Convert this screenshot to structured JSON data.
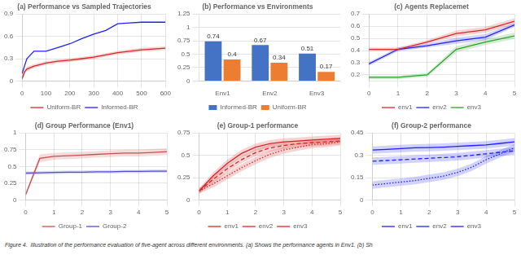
{
  "caption": "Figure 4.  Illustration of the performance evaluation of five-agent across different environments. (a) Shows the performance agents in Env1. (b) Sh",
  "chart_data": [
    {
      "type": "line",
      "title": "(a) Performance vs Sampled Trajectories",
      "x": [
        0,
        10,
        20,
        50,
        75,
        100,
        150,
        200,
        250,
        300,
        350,
        400,
        450,
        500,
        550,
        600
      ],
      "series": [
        {
          "name": "Uniform-BR",
          "color": "#d62728",
          "values": [
            0.03,
            0.12,
            0.16,
            0.2,
            0.22,
            0.24,
            0.265,
            0.28,
            0.3,
            0.32,
            0.35,
            0.38,
            0.4,
            0.42,
            0.43,
            0.44
          ],
          "lower": [
            0.02,
            0.09,
            0.13,
            0.175,
            0.195,
            0.215,
            0.24,
            0.255,
            0.275,
            0.295,
            0.325,
            0.355,
            0.375,
            0.395,
            0.405,
            0.415
          ],
          "upper": [
            0.04,
            0.15,
            0.19,
            0.225,
            0.245,
            0.265,
            0.29,
            0.305,
            0.325,
            0.345,
            0.375,
            0.405,
            0.425,
            0.445,
            0.455,
            0.465
          ]
        },
        {
          "name": "Informed-BR",
          "color": "#1f1fff",
          "values": [
            0.1,
            0.2,
            0.3,
            0.4,
            0.4,
            0.4,
            0.45,
            0.5,
            0.57,
            0.63,
            0.68,
            0.77,
            0.78,
            0.79,
            0.79,
            0.79
          ]
        }
      ],
      "xlim": [
        0,
        600
      ],
      "xticks": [
        0,
        100,
        200,
        300,
        400,
        500,
        600
      ],
      "ylim": [
        0.0,
        0.9
      ],
      "yticks": [
        0,
        0.3,
        0.6,
        0.9
      ],
      "grid": true,
      "legend": "bottom"
    },
    {
      "type": "bar",
      "title": "(b) Performance vs Environments",
      "categories": [
        "Env1",
        "Env2",
        "Env3"
      ],
      "series": [
        {
          "name": "Informed-BR",
          "color": "#4472c4",
          "values": [
            0.74,
            0.67,
            0.51
          ]
        },
        {
          "name": "Uniform-BR",
          "color": "#ed7d31",
          "values": [
            0.4,
            0.34,
            0.17
          ]
        }
      ],
      "ylim": [
        0,
        1.25
      ],
      "yticks": [
        0,
        0.25,
        0.5,
        0.75,
        1,
        1.25
      ],
      "grid": "y",
      "legend": "bottom",
      "data_labels": true
    },
    {
      "type": "line",
      "title": "(c) Agents Replacemet",
      "x": [
        0,
        1,
        2,
        3,
        4,
        5
      ],
      "series": [
        {
          "name": "env1",
          "color": "#d62728",
          "values": [
            0.41,
            0.41,
            0.47,
            0.54,
            0.57,
            0.64
          ],
          "lower": [
            0.395,
            0.395,
            0.455,
            0.515,
            0.545,
            0.615
          ],
          "upper": [
            0.425,
            0.425,
            0.485,
            0.565,
            0.595,
            0.665
          ]
        },
        {
          "name": "env2",
          "color": "#1f1fff",
          "values": [
            0.29,
            0.41,
            0.44,
            0.48,
            0.51,
            0.61
          ],
          "lower": [
            0.275,
            0.395,
            0.425,
            0.455,
            0.485,
            0.595
          ],
          "upper": [
            0.305,
            0.425,
            0.455,
            0.505,
            0.535,
            0.625
          ]
        },
        {
          "name": "env3",
          "color": "#2ca02c",
          "values": [
            0.18,
            0.18,
            0.2,
            0.41,
            0.47,
            0.52
          ],
          "lower": [
            0.165,
            0.165,
            0.185,
            0.385,
            0.445,
            0.495
          ],
          "upper": [
            0.195,
            0.195,
            0.215,
            0.435,
            0.495,
            0.545
          ]
        }
      ],
      "xlim": [
        0,
        5
      ],
      "xticks": [
        0,
        1,
        2,
        3,
        4,
        5
      ],
      "ylim": [
        0.15,
        0.7
      ],
      "yticks": [
        0.2,
        0.3,
        0.4,
        0.5,
        0.6,
        0.7
      ],
      "grid": true,
      "legend": "bottom"
    },
    {
      "type": "line",
      "title": "(d) Group Performance (Env1)",
      "x": [
        0,
        0.5,
        1,
        1.5,
        2,
        2.5,
        3,
        3.5,
        4,
        4.5,
        5
      ],
      "series": [
        {
          "name": "Group-1",
          "color": "#c85050",
          "values": [
            0.08,
            0.62,
            0.65,
            0.66,
            0.67,
            0.68,
            0.69,
            0.7,
            0.7,
            0.71,
            0.72
          ],
          "lower": [
            0.05,
            0.56,
            0.6,
            0.61,
            0.62,
            0.63,
            0.64,
            0.65,
            0.65,
            0.66,
            0.67
          ],
          "upper": [
            0.11,
            0.68,
            0.7,
            0.71,
            0.72,
            0.73,
            0.74,
            0.75,
            0.75,
            0.76,
            0.77
          ]
        },
        {
          "name": "Group-2",
          "color": "#5050c8",
          "values": [
            0.4,
            0.405,
            0.41,
            0.415,
            0.415,
            0.42,
            0.42,
            0.425,
            0.425,
            0.43,
            0.43
          ],
          "lower": [
            0.375,
            0.38,
            0.385,
            0.39,
            0.39,
            0.395,
            0.395,
            0.4,
            0.4,
            0.405,
            0.405
          ],
          "upper": [
            0.425,
            0.43,
            0.435,
            0.44,
            0.44,
            0.445,
            0.445,
            0.45,
            0.45,
            0.455,
            0.455
          ]
        }
      ],
      "xlim": [
        0,
        5
      ],
      "xticks": [
        0,
        1,
        2,
        3,
        4,
        5
      ],
      "ylim": [
        0.0,
        1.0
      ],
      "yticks": [
        0,
        0.25,
        0.5,
        0.75,
        1
      ],
      "grid": true,
      "legend": "bottom"
    },
    {
      "type": "line",
      "title": "(e) Group-1 performance",
      "x": [
        0,
        0.5,
        1,
        1.5,
        2,
        2.5,
        3,
        3.5,
        4,
        4.5,
        5
      ],
      "series": [
        {
          "name": "env1",
          "color": "#d62728",
          "line_style": "solid",
          "values": [
            0.1,
            0.27,
            0.41,
            0.52,
            0.59,
            0.63,
            0.65,
            0.66,
            0.67,
            0.68,
            0.69
          ],
          "lower": [
            0.07,
            0.23,
            0.37,
            0.48,
            0.55,
            0.59,
            0.61,
            0.62,
            0.63,
            0.64,
            0.65
          ],
          "upper": [
            0.13,
            0.31,
            0.45,
            0.56,
            0.63,
            0.67,
            0.69,
            0.7,
            0.71,
            0.72,
            0.73
          ]
        },
        {
          "name": "env2",
          "color": "#d62728",
          "line_style": "dashed",
          "values": [
            0.1,
            0.23,
            0.35,
            0.45,
            0.53,
            0.58,
            0.61,
            0.63,
            0.64,
            0.65,
            0.66
          ],
          "lower": [
            0.07,
            0.19,
            0.31,
            0.41,
            0.49,
            0.54,
            0.57,
            0.59,
            0.6,
            0.61,
            0.62
          ],
          "upper": [
            0.13,
            0.27,
            0.39,
            0.49,
            0.57,
            0.62,
            0.65,
            0.67,
            0.68,
            0.69,
            0.7
          ]
        },
        {
          "name": "env3",
          "color": "#d62728",
          "line_style": "dotted",
          "values": [
            0.1,
            0.18,
            0.27,
            0.36,
            0.44,
            0.51,
            0.56,
            0.59,
            0.62,
            0.63,
            0.65
          ],
          "lower": [
            0.07,
            0.14,
            0.23,
            0.32,
            0.4,
            0.47,
            0.52,
            0.55,
            0.58,
            0.59,
            0.61
          ],
          "upper": [
            0.13,
            0.22,
            0.31,
            0.4,
            0.48,
            0.55,
            0.6,
            0.63,
            0.66,
            0.67,
            0.69
          ]
        }
      ],
      "xlim": [
        0,
        5
      ],
      "xticks": [
        0,
        1,
        2,
        3,
        4,
        5
      ],
      "ylim": [
        0.0,
        0.75
      ],
      "yticks": [
        0,
        0.25,
        0.5,
        0.75
      ],
      "grid": true,
      "legend": "bottom"
    },
    {
      "type": "line",
      "title": "(f) Group-2 performance",
      "x": [
        0,
        0.5,
        1,
        1.5,
        2,
        2.5,
        3,
        3.5,
        4,
        4.5,
        5
      ],
      "series": [
        {
          "name": "env1",
          "color": "#1f1fff",
          "line_style": "solid",
          "values": [
            0.335,
            0.34,
            0.345,
            0.35,
            0.352,
            0.355,
            0.36,
            0.365,
            0.37,
            0.38,
            0.39
          ],
          "lower": [
            0.31,
            0.315,
            0.32,
            0.325,
            0.327,
            0.33,
            0.335,
            0.34,
            0.345,
            0.355,
            0.365
          ],
          "upper": [
            0.36,
            0.365,
            0.37,
            0.375,
            0.377,
            0.38,
            0.385,
            0.39,
            0.395,
            0.405,
            0.415
          ]
        },
        {
          "name": "env2",
          "color": "#1f1fff",
          "line_style": "dashed",
          "values": [
            0.26,
            0.265,
            0.27,
            0.275,
            0.28,
            0.285,
            0.29,
            0.3,
            0.31,
            0.32,
            0.33
          ],
          "lower": [
            0.235,
            0.24,
            0.245,
            0.25,
            0.255,
            0.26,
            0.265,
            0.275,
            0.285,
            0.295,
            0.305
          ],
          "upper": [
            0.285,
            0.29,
            0.295,
            0.3,
            0.305,
            0.31,
            0.315,
            0.325,
            0.335,
            0.345,
            0.355
          ]
        },
        {
          "name": "env3",
          "color": "#1f1fff",
          "line_style": "dotted",
          "values": [
            0.1,
            0.11,
            0.12,
            0.13,
            0.145,
            0.16,
            0.185,
            0.22,
            0.27,
            0.31,
            0.35
          ],
          "lower": [
            0.075,
            0.085,
            0.095,
            0.105,
            0.12,
            0.135,
            0.16,
            0.195,
            0.245,
            0.285,
            0.325
          ],
          "upper": [
            0.125,
            0.135,
            0.145,
            0.155,
            0.17,
            0.185,
            0.21,
            0.245,
            0.295,
            0.335,
            0.375
          ]
        }
      ],
      "xlim": [
        0,
        5
      ],
      "xticks": [
        0,
        1,
        2,
        3,
        4,
        5
      ],
      "ylim": [
        0.0,
        0.45
      ],
      "yticks": [
        0,
        0.15,
        0.3,
        0.45
      ],
      "grid": true,
      "legend": "bottom"
    }
  ]
}
